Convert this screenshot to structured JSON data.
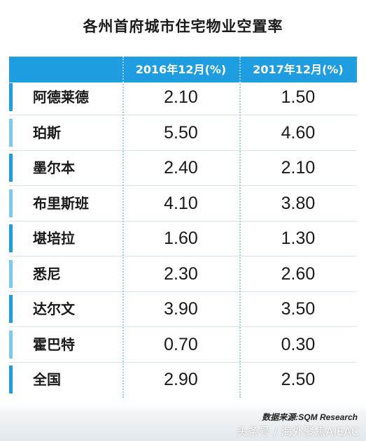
{
  "chart_data": {
    "type": "table",
    "title": "各州首府城市住宅物业空置率",
    "columns": [
      "",
      "2016年12月(%)",
      "2017年12月(%)"
    ],
    "rows": [
      {
        "city": "阿德莱德",
        "v2016": "2.10",
        "v2017": "1.50"
      },
      {
        "city": "珀斯",
        "v2016": "5.50",
        "v2017": "4.60"
      },
      {
        "city": "墨尔本",
        "v2016": "2.40",
        "v2017": "2.10"
      },
      {
        "city": "布里斯班",
        "v2016": "4.10",
        "v2017": "3.80"
      },
      {
        "city": "堪培拉",
        "v2016": "1.60",
        "v2017": "1.30"
      },
      {
        "city": "悉尼",
        "v2016": "2.30",
        "v2017": "2.60"
      },
      {
        "city": "达尔文",
        "v2016": "3.90",
        "v2017": "3.50"
      },
      {
        "city": "霍巴特",
        "v2016": "0.70",
        "v2017": "0.30"
      },
      {
        "city": "全国",
        "v2016": "2.90",
        "v2017": "2.50"
      }
    ]
  },
  "source": "数据来源:SQM Research",
  "watermark": "头条号 / 海外聚焦AIEAC",
  "colors": {
    "header": "#1e9ee0",
    "bar_dark": "#1e9ee0",
    "bar_light": "#7cc9ee"
  }
}
